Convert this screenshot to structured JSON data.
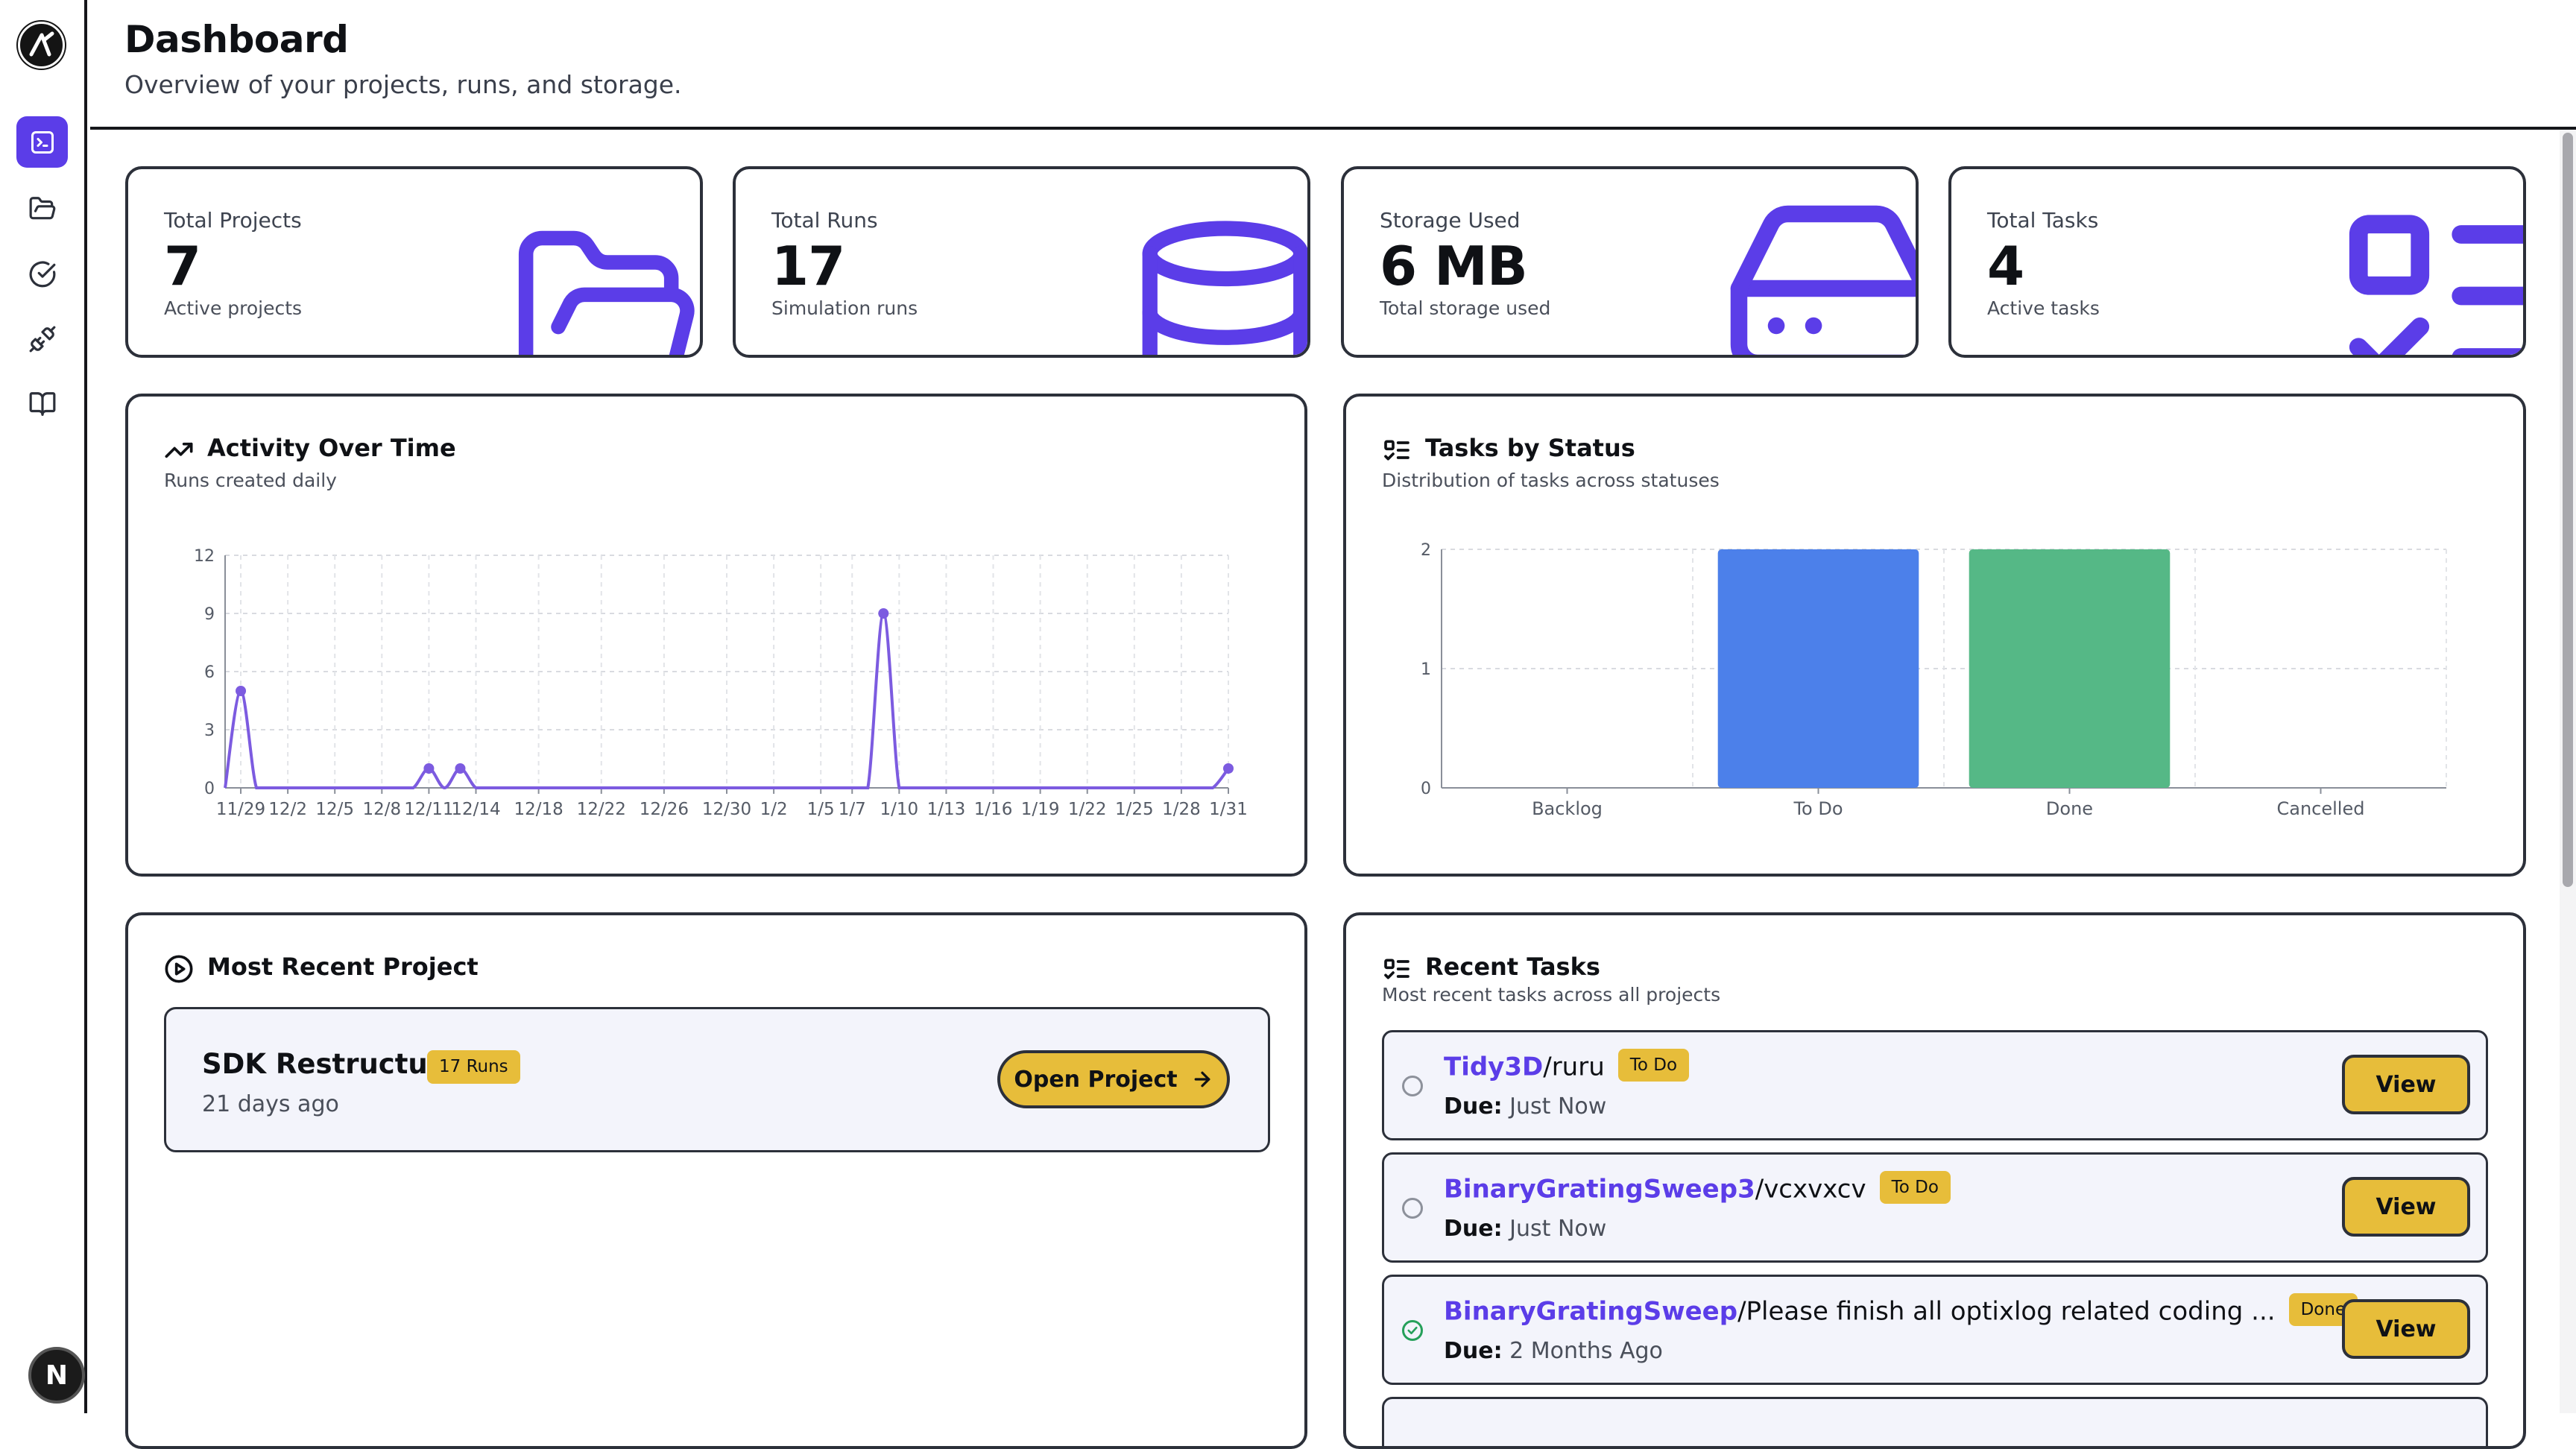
{
  "header": {
    "title": "Dashboard",
    "subtitle": "Overview of your projects, runs, and storage."
  },
  "sidebar": {
    "items": [
      {
        "icon": "terminal-icon",
        "active": true
      },
      {
        "icon": "folder-icon",
        "active": false
      },
      {
        "icon": "check-circle-icon",
        "active": false
      },
      {
        "icon": "plug-icon",
        "active": false
      },
      {
        "icon": "book-icon",
        "active": false
      }
    ],
    "avatar_letter": "N"
  },
  "stats": [
    {
      "label": "Total Projects",
      "value": "7",
      "sub": "Active projects",
      "icon": "folder-icon"
    },
    {
      "label": "Total Runs",
      "value": "17",
      "sub": "Simulation runs",
      "icon": "database-icon"
    },
    {
      "label": "Storage Used",
      "value": "6 MB",
      "sub": "Total storage used",
      "icon": "hard-drive-icon"
    },
    {
      "label": "Total Tasks",
      "value": "4",
      "sub": "Active tasks",
      "icon": "list-checks-icon"
    }
  ],
  "activity": {
    "title": "Activity Over Time",
    "subtitle": "Runs created daily"
  },
  "tasks_status": {
    "title": "Tasks by Status",
    "subtitle": "Distribution of tasks across statuses"
  },
  "recent_project": {
    "title": "Most Recent Project",
    "name": "SDK Restructure",
    "badge": "17 Runs",
    "time": "21 days ago",
    "button": "Open Project"
  },
  "recent_tasks": {
    "title": "Recent Tasks",
    "subtitle": "Most recent tasks across all projects",
    "due_label": "Due:",
    "view_label": "View",
    "items": [
      {
        "project": "Tidy3D",
        "name": "/ruru",
        "status": "To Do",
        "due": "Just Now",
        "done": false
      },
      {
        "project": "BinaryGratingSweep3",
        "name": "/vcxvxcv",
        "status": "To Do",
        "due": "Just Now",
        "done": false
      },
      {
        "project": "BinaryGratingSweep",
        "name": "/Please finish all optixlog related coding ...",
        "status": "Done",
        "due": "2 Months Ago",
        "done": true
      }
    ]
  },
  "colors": {
    "accent": "#5b3de8",
    "badge": "#e7bd3a",
    "todo_bar": "#4c80ea",
    "done_bar": "#55b886",
    "line": "#7c5be0"
  },
  "chart_data": [
    {
      "type": "line",
      "x": [
        "11/28",
        "11/29",
        "11/30",
        "12/1",
        "12/2",
        "12/3",
        "12/4",
        "12/5",
        "12/6",
        "12/7",
        "12/8",
        "12/9",
        "12/10",
        "12/11",
        "12/12",
        "12/13",
        "12/14",
        "12/15",
        "12/16",
        "12/17",
        "12/18",
        "12/19",
        "12/20",
        "12/21",
        "12/22",
        "12/23",
        "12/24",
        "12/25",
        "12/26",
        "12/27",
        "12/28",
        "12/29",
        "12/30",
        "12/31",
        "1/1",
        "1/2",
        "1/3",
        "1/4",
        "1/5",
        "1/6",
        "1/7",
        "1/8",
        "1/9",
        "1/10",
        "1/11",
        "1/12",
        "1/13",
        "1/14",
        "1/15",
        "1/16",
        "1/17",
        "1/18",
        "1/19",
        "1/20",
        "1/21",
        "1/22",
        "1/23",
        "1/24",
        "1/25",
        "1/26",
        "1/27",
        "1/28",
        "1/29",
        "1/30",
        "1/31"
      ],
      "series": [
        {
          "values": [
            0,
            5,
            0,
            0,
            0,
            0,
            0,
            0,
            0,
            0,
            0,
            0,
            0,
            1,
            0,
            1,
            0,
            0,
            0,
            0,
            0,
            0,
            0,
            0,
            0,
            0,
            0,
            0,
            0,
            0,
            0,
            0,
            0,
            0,
            0,
            0,
            0,
            0,
            0,
            0,
            0,
            0,
            9,
            0,
            0,
            0,
            0,
            0,
            0,
            0,
            0,
            0,
            0,
            0,
            0,
            0,
            0,
            0,
            0,
            0,
            0,
            0,
            0,
            0,
            1
          ]
        }
      ],
      "tick_labels": [
        "11/29",
        "12/2",
        "12/5",
        "12/8",
        "12/11",
        "12/14",
        "12/18",
        "12/22",
        "12/26",
        "12/30",
        "1/2",
        "1/5",
        "1/7",
        "1/10",
        "1/13",
        "1/16",
        "1/19",
        "1/22",
        "1/25",
        "1/28",
        "1/31"
      ],
      "yticks": [
        "0",
        "3",
        "6",
        "9",
        "12"
      ],
      "ylim": [
        0,
        12
      ],
      "grid": true
    },
    {
      "type": "bar",
      "categories": [
        "Backlog",
        "To Do",
        "Done",
        "Cancelled"
      ],
      "values": [
        0,
        2,
        2,
        0
      ],
      "colors": [
        "#4c80ea",
        "#4c80ea",
        "#55b886",
        "#9a9a9a"
      ],
      "yticks": [
        "0",
        "1",
        "2"
      ],
      "ylim": [
        0,
        2
      ],
      "grid": true
    }
  ]
}
